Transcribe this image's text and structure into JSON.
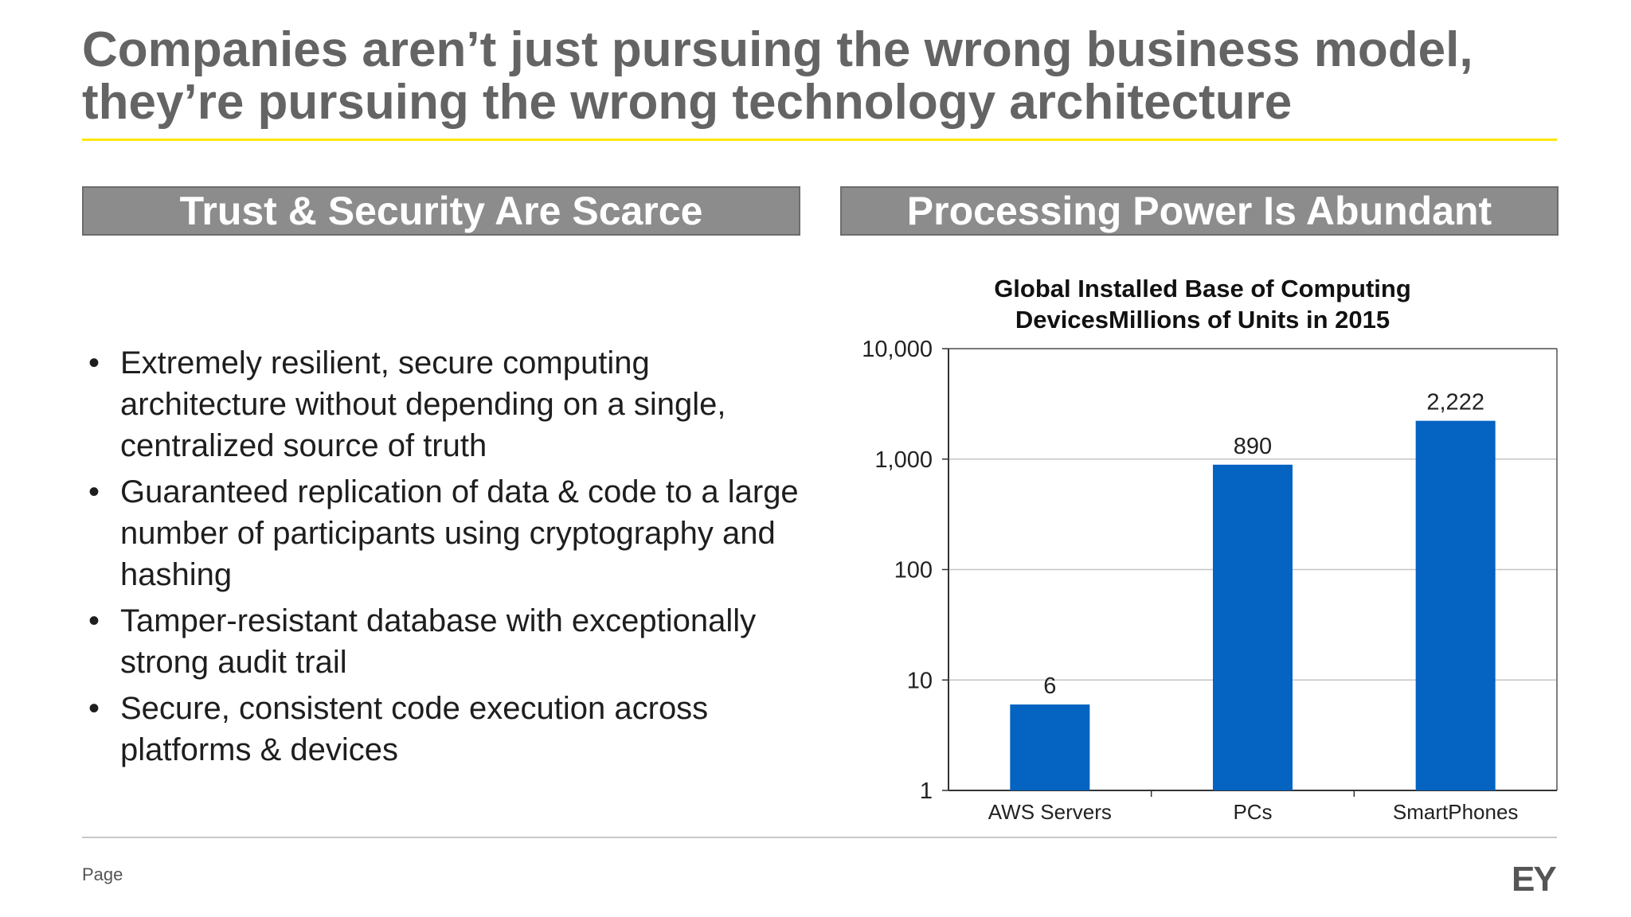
{
  "slide": {
    "title_line1": "Companies aren’t just pursuing the wrong business model,",
    "title_line2": "they’re pursuing the wrong technology architecture",
    "left_header": "Trust & Security Are Scarce",
    "right_header": "Processing Power Is Abundant",
    "bullet_symbol": "•",
    "bullets": [
      "Extremely resilient, secure computing architecture without depending on a single, centralized source of truth",
      "Guaranteed replication of data & code to a large number of participants using cryptography and hashing",
      "Tamper-resistant database with exceptionally strong audit trail",
      "Secure, consistent code execution across platforms & devices"
    ],
    "footer_page": "Page",
    "logo_text": "EY",
    "accent_color": "#ffe600",
    "header_color": "#8c8c8c"
  },
  "chart_data": {
    "type": "bar",
    "title_line1": "Global Installed Base of Computing",
    "title_line2": "DevicesMillions of Units in 2015",
    "categories": [
      "AWS Servers",
      "PCs",
      "SmartPhones"
    ],
    "values": [
      6,
      890,
      2222
    ],
    "data_labels": [
      "6",
      "890",
      "2,222"
    ],
    "y_scale": "log",
    "ylim": [
      1,
      10000
    ],
    "y_ticks": [
      1,
      10,
      100,
      1000,
      10000
    ],
    "y_tick_labels": [
      "1",
      "10",
      "100",
      "1,000",
      "10,000"
    ],
    "grid": true,
    "legend": "none",
    "bar_color": "#0563c1"
  }
}
